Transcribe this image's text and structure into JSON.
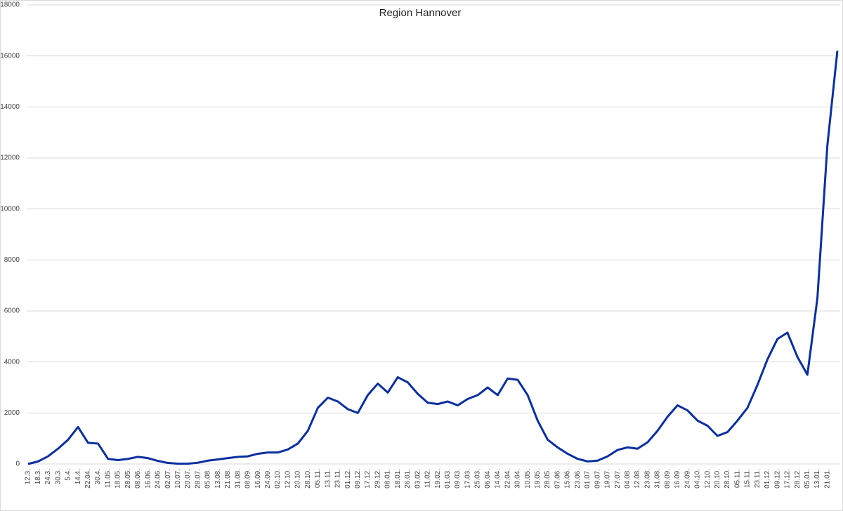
{
  "chart_data": {
    "type": "line",
    "title": "Region Hannover",
    "categories": [
      "12.3.",
      "18.3.",
      "24.3.",
      "30.3.",
      "5.4.",
      "14.4.",
      "22.04.",
      "30.4.",
      "11.05.",
      "18.05.",
      "28.05.",
      "08.06.",
      "16.06.",
      "24.06.",
      "02.07.",
      "10.07.",
      "20.07.",
      "28.07.",
      "05.08.",
      "13.08.",
      "21.08.",
      "31.08.",
      "08.09.",
      "16.09.",
      "24.09.",
      "02.10.",
      "12.10.",
      "20.10.",
      "28.10.",
      "05.11.",
      "13.11.",
      "23.11.",
      "01.12.",
      "09.12.",
      "17.12.",
      "29.12.",
      "08.01.",
      "18.01.",
      "26.01.",
      "03.02.",
      "11.02.",
      "19.02.",
      "01.03.",
      "09.03.",
      "17.03.",
      "25.03.",
      "06.04.",
      "14.04.",
      "22.04.",
      "30.04.",
      "10.05.",
      "19.05.",
      "28.05.",
      "07.06.",
      "15.06.",
      "23.06.",
      "01.07.",
      "09.07.",
      "19.07.",
      "27.07.",
      "04.08.",
      "12.08.",
      "23.08.",
      "31.08.",
      "08.09.",
      "16.09.",
      "24.09.",
      "04.10.",
      "12.10.",
      "20.10.",
      "28.10.",
      "05.11.",
      "15.11.",
      "23.11.",
      "01.12.",
      "09.12.",
      "17.12.",
      "28.12.",
      "05.01.",
      "13.01.",
      "21.01.",
      null
    ],
    "series": [
      {
        "name": "Region Hannover",
        "color": "#0a2fa0",
        "values": [
          0,
          100,
          300,
          600,
          950,
          1450,
          830,
          800,
          200,
          150,
          200,
          280,
          230,
          120,
          40,
          10,
          10,
          50,
          130,
          180,
          230,
          280,
          300,
          400,
          450,
          450,
          570,
          800,
          1300,
          2200,
          2600,
          2450,
          2150,
          2000,
          2700,
          3150,
          2800,
          3400,
          3200,
          2750,
          2400,
          2350,
          2450,
          2300,
          2550,
          2700,
          3000,
          2700,
          3350,
          3300,
          2700,
          1700,
          950,
          650,
          400,
          200,
          100,
          130,
          300,
          550,
          650,
          600,
          850,
          1300,
          1850,
          2300,
          2100,
          1700,
          1500,
          1100,
          1250,
          1700,
          2200,
          3100,
          4100,
          4900,
          5150,
          4200,
          3500,
          6500,
          12500,
          16200
        ]
      }
    ],
    "ylim": [
      0,
      18000
    ],
    "yticks": [
      0,
      2000,
      4000,
      6000,
      8000,
      10000,
      12000,
      14000,
      16000,
      18000
    ],
    "grid": true
  }
}
